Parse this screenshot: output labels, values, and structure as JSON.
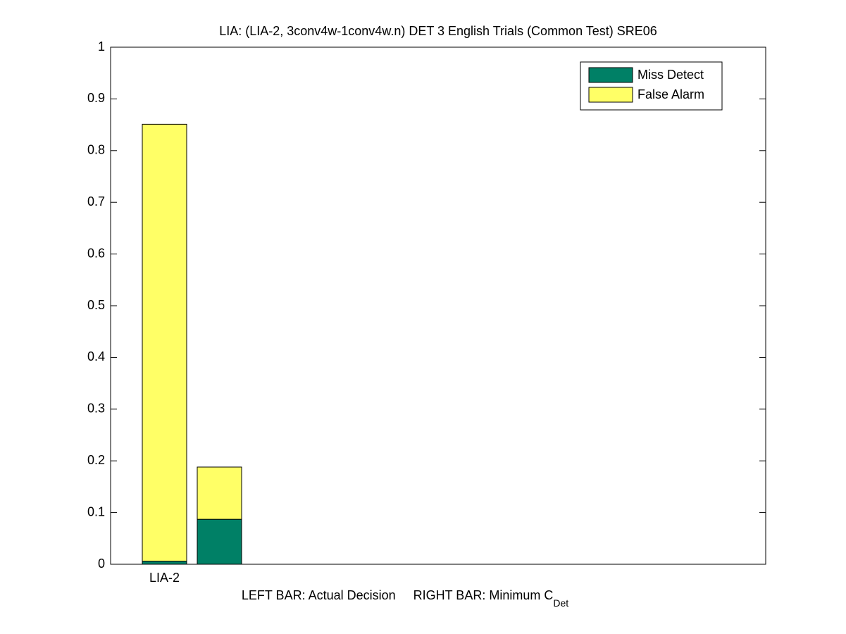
{
  "chart_data": {
    "type": "stacked_bar",
    "title": "LIA: (LIA-2, 3conv4w-1conv4w.n) DET 3 English Trials (Common Test) SRE06",
    "xlabel": "LEFT BAR: Actual Decision     RIGHT BAR: Minimum C",
    "xlabel_subscript": "Det",
    "categories": [
      "LIA-2",
      null
    ],
    "series": [
      {
        "name": "Miss Detect",
        "color": "#008066",
        "values": [
          0.006,
          0.087
        ]
      },
      {
        "name": "False Alarm",
        "color": "#ffff66",
        "values": [
          0.845,
          0.101
        ]
      }
    ],
    "ylim": [
      0,
      1
    ],
    "yticks": [
      0,
      0.1,
      0.2,
      0.3,
      0.4,
      0.5,
      0.6,
      0.7,
      0.8,
      0.9,
      1
    ],
    "legend": "upper right"
  }
}
